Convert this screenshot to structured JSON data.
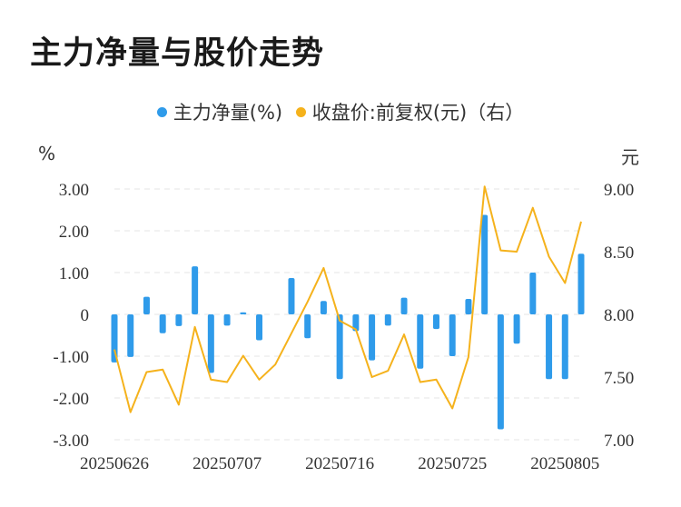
{
  "title": "主力净量与股价走势",
  "legend": {
    "bar_label": "主力净量(%)",
    "line_label": "收盘价:前复权(元)（右）"
  },
  "axes": {
    "left_unit": "%",
    "right_unit": "元"
  },
  "colors": {
    "bar": "#2f9bea",
    "line": "#f5b21c",
    "grid": "#e6e6e6",
    "text": "#333333"
  },
  "chart_data": {
    "type": "bar+line",
    "x_tick_labels": [
      "20250626",
      "20250707",
      "20250716",
      "20250725",
      "20250805"
    ],
    "x_tick_indices": [
      0,
      7,
      14,
      21,
      28
    ],
    "left_axis": {
      "ylim": [
        -3,
        3
      ],
      "ticks": [
        "3.00",
        "2.00",
        "1.00",
        "0",
        "-1.00",
        "-2.00",
        "-3.00"
      ]
    },
    "right_axis": {
      "ylim": [
        7.0,
        9.0
      ],
      "ticks": [
        "9.00",
        "8.50",
        "8.00",
        "7.50",
        "7.00"
      ]
    },
    "series": [
      {
        "name": "主力净量(%)",
        "type": "bar",
        "axis": "left",
        "values": [
          -1.15,
          -1.02,
          0.42,
          -0.45,
          -0.28,
          1.15,
          -1.4,
          -0.27,
          0.05,
          -0.62,
          0.0,
          0.87,
          -0.57,
          0.32,
          -1.55,
          -0.4,
          -1.1,
          -0.27,
          0.4,
          -1.3,
          -0.35,
          -1.0,
          0.37,
          2.38,
          -2.75,
          -0.7,
          1.0,
          -1.55,
          -1.55,
          1.45
        ]
      },
      {
        "name": "收盘价:前复权(元)（右）",
        "type": "line",
        "axis": "right",
        "values": [
          7.72,
          7.22,
          7.54,
          7.56,
          7.28,
          7.9,
          7.48,
          7.46,
          7.67,
          7.48,
          7.6,
          7.85,
          8.1,
          8.37,
          7.95,
          7.88,
          7.5,
          7.55,
          7.84,
          7.46,
          7.48,
          7.25,
          7.66,
          9.02,
          8.51,
          8.5,
          8.85,
          8.46,
          8.25,
          8.74
        ]
      }
    ],
    "grid": true,
    "legend_position": "top-center"
  }
}
